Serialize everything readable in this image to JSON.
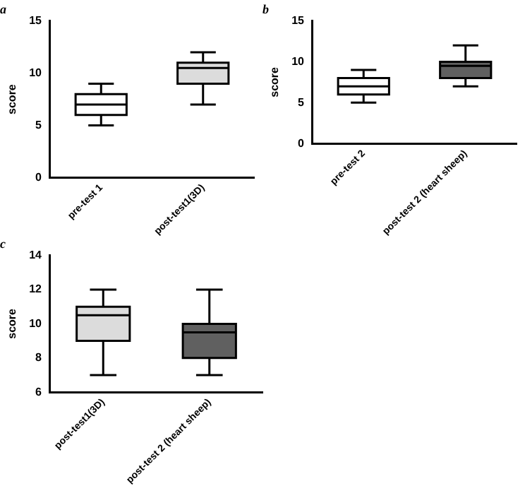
{
  "chart_data": [
    {
      "type": "box",
      "title": "a",
      "ylabel": "score",
      "categories": [
        "pre-test 1",
        "post-test1(3D)"
      ],
      "colors": [
        "#ffffff",
        "#dcdcdc"
      ],
      "boxes": [
        {
          "low": 5,
          "q1": 6,
          "median": 7,
          "q3": 8,
          "high": 9
        },
        {
          "low": 7,
          "q1": 9,
          "median": 10.5,
          "q3": 11,
          "high": 12
        }
      ],
      "ylim": [
        0,
        15
      ],
      "yticks": [
        0,
        5,
        10,
        15
      ],
      "grid": false,
      "legend": false
    },
    {
      "type": "box",
      "title": "b",
      "ylabel": "score",
      "categories": [
        "pre-test 2",
        "post-test 2 (heart sheep)"
      ],
      "colors": [
        "#ffffff",
        "#606060"
      ],
      "boxes": [
        {
          "low": 5,
          "q1": 6,
          "median": 7,
          "q3": 8,
          "high": 9
        },
        {
          "low": 7,
          "q1": 8,
          "median": 9.5,
          "q3": 10,
          "high": 12
        }
      ],
      "ylim": [
        0,
        15
      ],
      "yticks": [
        0,
        5,
        10,
        15
      ],
      "grid": false,
      "legend": false
    },
    {
      "type": "box",
      "title": "c",
      "ylabel": "score",
      "categories": [
        "post-test1(3D)",
        "post-test 2 (heart sheep)"
      ],
      "colors": [
        "#dcdcdc",
        "#606060"
      ],
      "boxes": [
        {
          "low": 7,
          "q1": 9,
          "median": 10.5,
          "q3": 11,
          "high": 12
        },
        {
          "low": 7,
          "q1": 8,
          "median": 9.5,
          "q3": 10,
          "high": 12
        }
      ],
      "ylim": [
        6,
        14
      ],
      "yticks": [
        6,
        8,
        10,
        12,
        14
      ],
      "grid": false,
      "legend": false
    }
  ]
}
